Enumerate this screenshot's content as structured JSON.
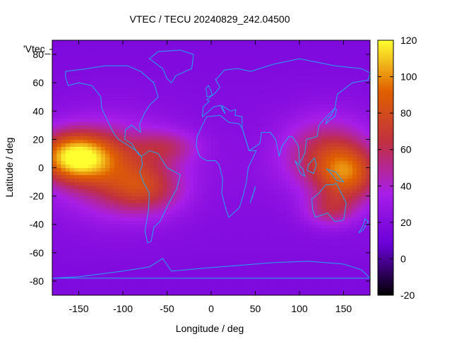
{
  "chart_data": {
    "type": "heatmap",
    "title": "VTEC / TECU 20240829_242.04500",
    "xlabel": "Longitude / deg",
    "ylabel": "Latitude / deg",
    "key_label": "'Vtec_",
    "xlim": [
      -180,
      180
    ],
    "ylim": [
      -90,
      90
    ],
    "x_ticks": [
      -150,
      -100,
      -50,
      0,
      50,
      100,
      150
    ],
    "y_ticks": [
      -80,
      -60,
      -40,
      -20,
      0,
      20,
      40,
      60,
      80
    ],
    "colorbar": {
      "range": [
        -20,
        120
      ],
      "ticks": [
        -20,
        0,
        20,
        40,
        60,
        80,
        100,
        120
      ]
    },
    "colormap": [
      "#000000",
      "#6a00d8",
      "#a81ee8",
      "#c03040",
      "#e06000",
      "#ffff30"
    ],
    "coastline_color": "#1fa8ee",
    "grid": false,
    "blobs": [
      {
        "lon": -155,
        "lat": 8,
        "sx": 30,
        "sy": 12,
        "amp": 85
      },
      {
        "lon": -110,
        "lat": 0,
        "sx": 45,
        "sy": 22,
        "amp": 40
      },
      {
        "lon": -75,
        "lat": -15,
        "sx": 30,
        "sy": 12,
        "amp": 35
      },
      {
        "lon": -50,
        "lat": 15,
        "sx": 25,
        "sy": 8,
        "amp": 25
      },
      {
        "lon": 155,
        "lat": -5,
        "sx": 25,
        "sy": 14,
        "amp": 55
      },
      {
        "lon": 130,
        "lat": 10,
        "sx": 35,
        "sy": 18,
        "amp": 40
      },
      {
        "lon": 135,
        "lat": -30,
        "sx": 20,
        "sy": 8,
        "amp": 30
      }
    ],
    "background_level": 22
  }
}
